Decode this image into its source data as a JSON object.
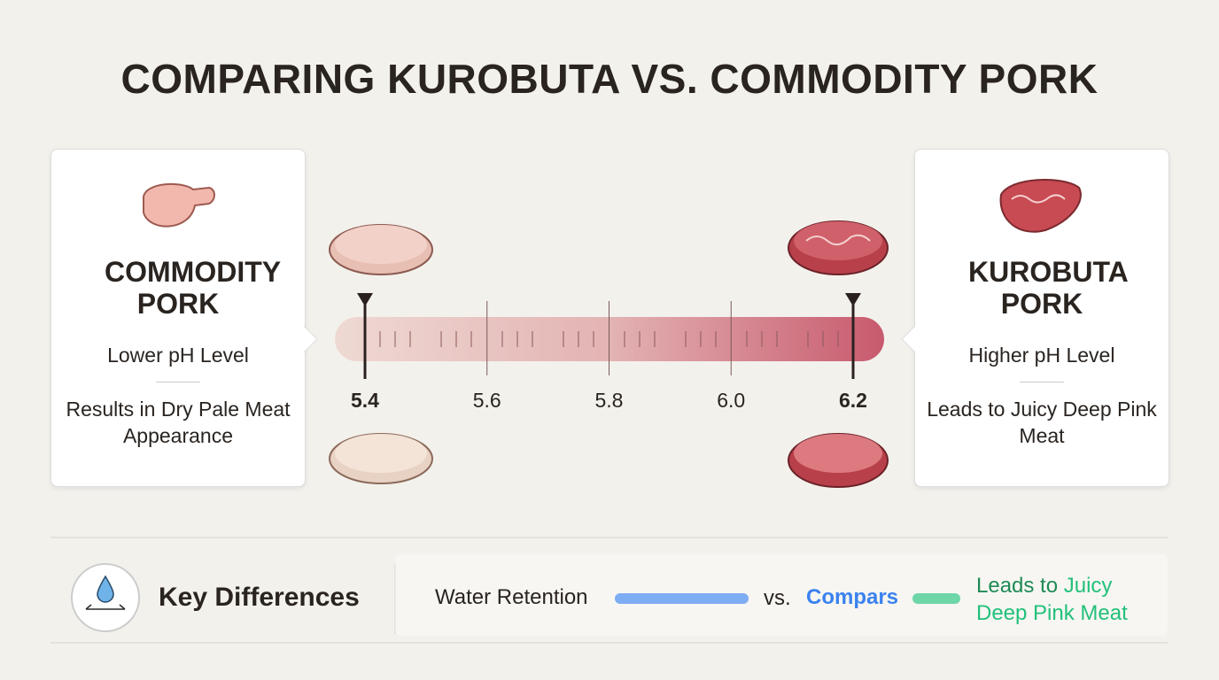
{
  "title": "COMPARING KUROBUTA VS. COMMODITY PORK",
  "left_card": {
    "title": "COMMODITY PORK",
    "level": "Lower pH Level",
    "result": "Results in Dry Pale Meat Appearance"
  },
  "right_card": {
    "title": "KUROBUTA PORK",
    "level": "Higher pH Level",
    "result": "Leads to Juicy Deep Pink Meat"
  },
  "scale": {
    "ticks": [
      5.4,
      5.6,
      5.8,
      {
        "value": 6,
        "label": "6.0"
      },
      6.2
    ],
    "markers": [
      5.4,
      6.2
    ]
  },
  "key_differences": {
    "title": "Key Differences",
    "label": "Water Retention",
    "vs": "vs.",
    "compare": "Compars",
    "result_prefix": "Leads to",
    "result_highlight": "Juicy Deep Pink Meat"
  }
}
